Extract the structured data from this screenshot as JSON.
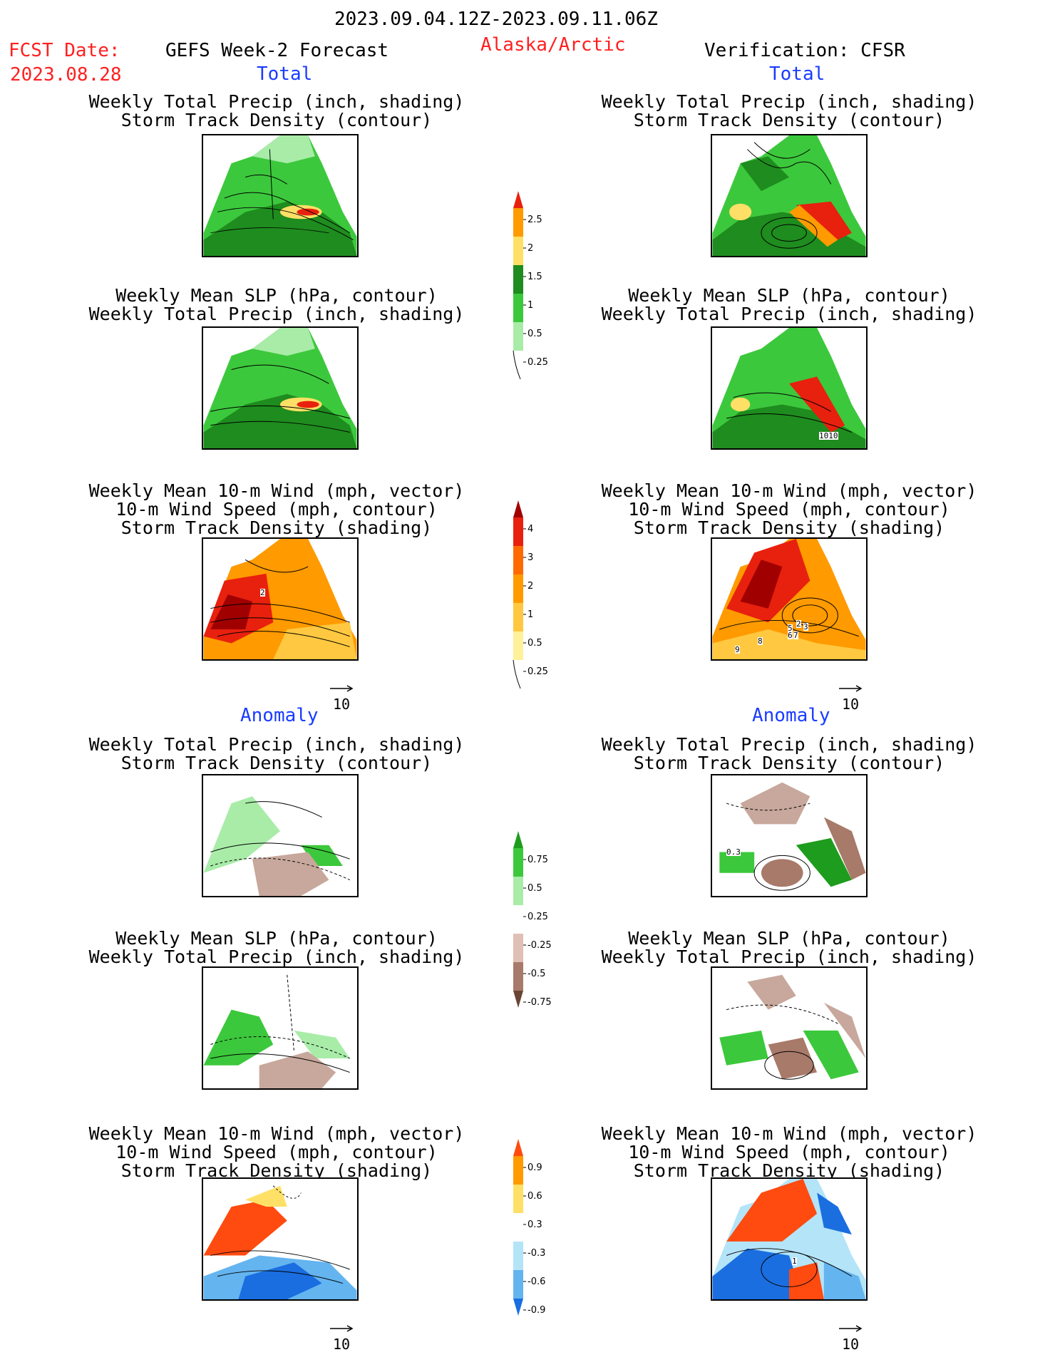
{
  "header": {
    "period": "2023.09.04.12Z-2023.09.11.06Z",
    "fcst_label": "FCST Date:",
    "fcst_date": "2023.08.28",
    "model": "GEFS Week-2 Forecast",
    "region": "Alaska/Arctic",
    "verification": "Verification: CFSR"
  },
  "sections": {
    "total": "Total",
    "anomaly": "Anomaly"
  },
  "titles": {
    "precip_track": [
      "Weekly Total Precip (inch, shading)",
      "Storm Track Density (contour)"
    ],
    "slp_precip": [
      "Weekly Mean SLP (hPa, contour)",
      "Weekly Total Precip (inch, shading)"
    ],
    "wind": [
      "Weekly Mean 10-m Wind (mph, vector)",
      "10-m Wind Speed (mph, contour)",
      "Storm Track Density (shading)"
    ]
  },
  "vector_ref": "10",
  "colorbars": {
    "precip_total": {
      "ticks": [
        "2.5",
        "2",
        "1.5",
        "1",
        "0.5",
        "0.25"
      ],
      "colors": [
        "#e8200e",
        "#ff9a00",
        "#ffe066",
        "#1e8c1e",
        "#3cc83c",
        "#a8eca8"
      ]
    },
    "storm_total": {
      "ticks": [
        "4",
        "3",
        "2",
        "1",
        "0.5",
        "0.25"
      ],
      "colors": [
        "#a00000",
        "#e8200e",
        "#ff6a00",
        "#ff9a00",
        "#ffc840",
        "#fff09a"
      ]
    },
    "precip_anom": {
      "ticks": [
        "0.75",
        "0.5",
        "0.25",
        "-0.25",
        "-0.5",
        "-0.75"
      ],
      "colors": [
        "#1e9c1e",
        "#3cc83c",
        "#a8eca8",
        "#ffffff",
        "#e0c0b4",
        "#a87a6a",
        "#6a4434"
      ]
    },
    "storm_anom": {
      "ticks": [
        "0.9",
        "0.6",
        "0.3",
        "-0.3",
        "-0.6",
        "-0.9"
      ],
      "colors": [
        "#ff4a10",
        "#ff9a00",
        "#ffe066",
        "#ffffff",
        "#b4e4f8",
        "#64b4f0",
        "#1a6ee0"
      ]
    }
  },
  "panel_labels": {
    "total_slp_right": "1010",
    "total_wind_left": "2",
    "total_wind_right": [
      "2",
      "3",
      "5",
      "6",
      "7",
      "8",
      "9"
    ],
    "anom_precip_right": "0.3",
    "anom_wind_right": "1"
  }
}
